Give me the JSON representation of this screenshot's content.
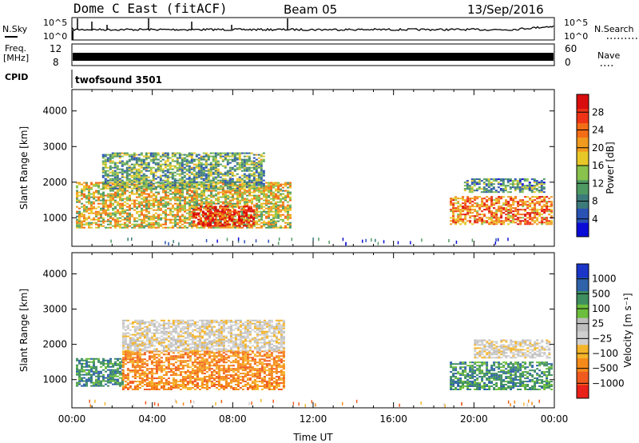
{
  "header": {
    "site": "Dome C East (fitACF)",
    "beam": "Beam 05",
    "date": "13/Sep/2016"
  },
  "strips": {
    "nsky_label": "N.Sky",
    "nsearch_label": "N.Search",
    "freq_label_1": "Freq.",
    "freq_label_2": "[MHz]",
    "nave_label": "Nave",
    "cpid_label": "CPID",
    "cpid_value": "twofsound 3501",
    "noise_ticks": [
      "10^5",
      "10^0"
    ],
    "freq_ticks": [
      "12",
      "8"
    ],
    "nave_ticks": [
      "60",
      "0"
    ]
  },
  "chart_data": [
    {
      "type": "heatmap",
      "panel": "power",
      "ylabel": "Slant Range [km]",
      "xlabel": "",
      "x_tick_labels": [],
      "y_ticks": [
        1000,
        2000,
        3000,
        4000
      ],
      "ylim": [
        200,
        4600
      ],
      "xlim_hours": [
        0,
        24
      ],
      "colorbar": {
        "label": "Power [dB]",
        "ticks": [
          "28",
          "24",
          "20",
          "16",
          "12",
          "8",
          "4"
        ],
        "colors": [
          "#0b0bd8",
          "#2a52b5",
          "#3d7a7a",
          "#4f9a62",
          "#89c24c",
          "#e8c829",
          "#f09a1e",
          "#f36c16",
          "#ee3316",
          "#d90d0d"
        ]
      },
      "blocks": [
        {
          "t0": 0.2,
          "t1": 10.9,
          "r0": 700,
          "r1": 2000,
          "intensity": 0.55
        },
        {
          "t0": 1.5,
          "t1": 9.5,
          "r0": 1800,
          "r1": 2800,
          "intensity": 0.35
        },
        {
          "t0": 6.0,
          "t1": 9.0,
          "r0": 750,
          "r1": 1300,
          "intensity": 0.9
        },
        {
          "t0": 18.8,
          "t1": 23.9,
          "r0": 800,
          "r1": 1600,
          "intensity": 0.75
        },
        {
          "t0": 19.5,
          "t1": 23.5,
          "r0": 1700,
          "r1": 2100,
          "intensity": 0.3
        }
      ]
    },
    {
      "type": "heatmap",
      "panel": "velocity",
      "ylabel": "Slant Range [km]",
      "xlabel": "Time UT",
      "x_tick_labels": [
        "00:00",
        "04:00",
        "08:00",
        "12:00",
        "16:00",
        "20:00",
        "00:00"
      ],
      "y_ticks": [
        1000,
        2000,
        3000,
        4000
      ],
      "ylim": [
        200,
        4600
      ],
      "xlim_hours": [
        0,
        24
      ],
      "colorbar": {
        "label": "Velocity [m s⁻¹]",
        "ticks": [
          "1000",
          "500",
          "100",
          "25",
          "−25",
          "−100",
          "−500",
          "−1000"
        ],
        "colors": [
          "#e8211a",
          "#f05a1e",
          "#f58a1a",
          "#f5b52a",
          "#d0d0d0",
          "#bebebe",
          "#6dbe3c",
          "#3f8f60",
          "#2f62a8",
          "#1a35c8"
        ]
      },
      "blocks": [
        {
          "t0": 0.2,
          "t1": 2.5,
          "r0": 800,
          "r1": 1600,
          "v": "green"
        },
        {
          "t0": 2.5,
          "t1": 10.5,
          "r0": 700,
          "r1": 1800,
          "v": "orange"
        },
        {
          "t0": 2.5,
          "t1": 10.5,
          "r0": 1800,
          "r1": 2700,
          "v": "grey"
        },
        {
          "t0": 18.8,
          "t1": 23.9,
          "r0": 700,
          "r1": 1500,
          "v": "green"
        },
        {
          "t0": 20.0,
          "t1": 23.8,
          "r0": 1600,
          "r1": 2100,
          "v": "grey"
        }
      ]
    }
  ]
}
